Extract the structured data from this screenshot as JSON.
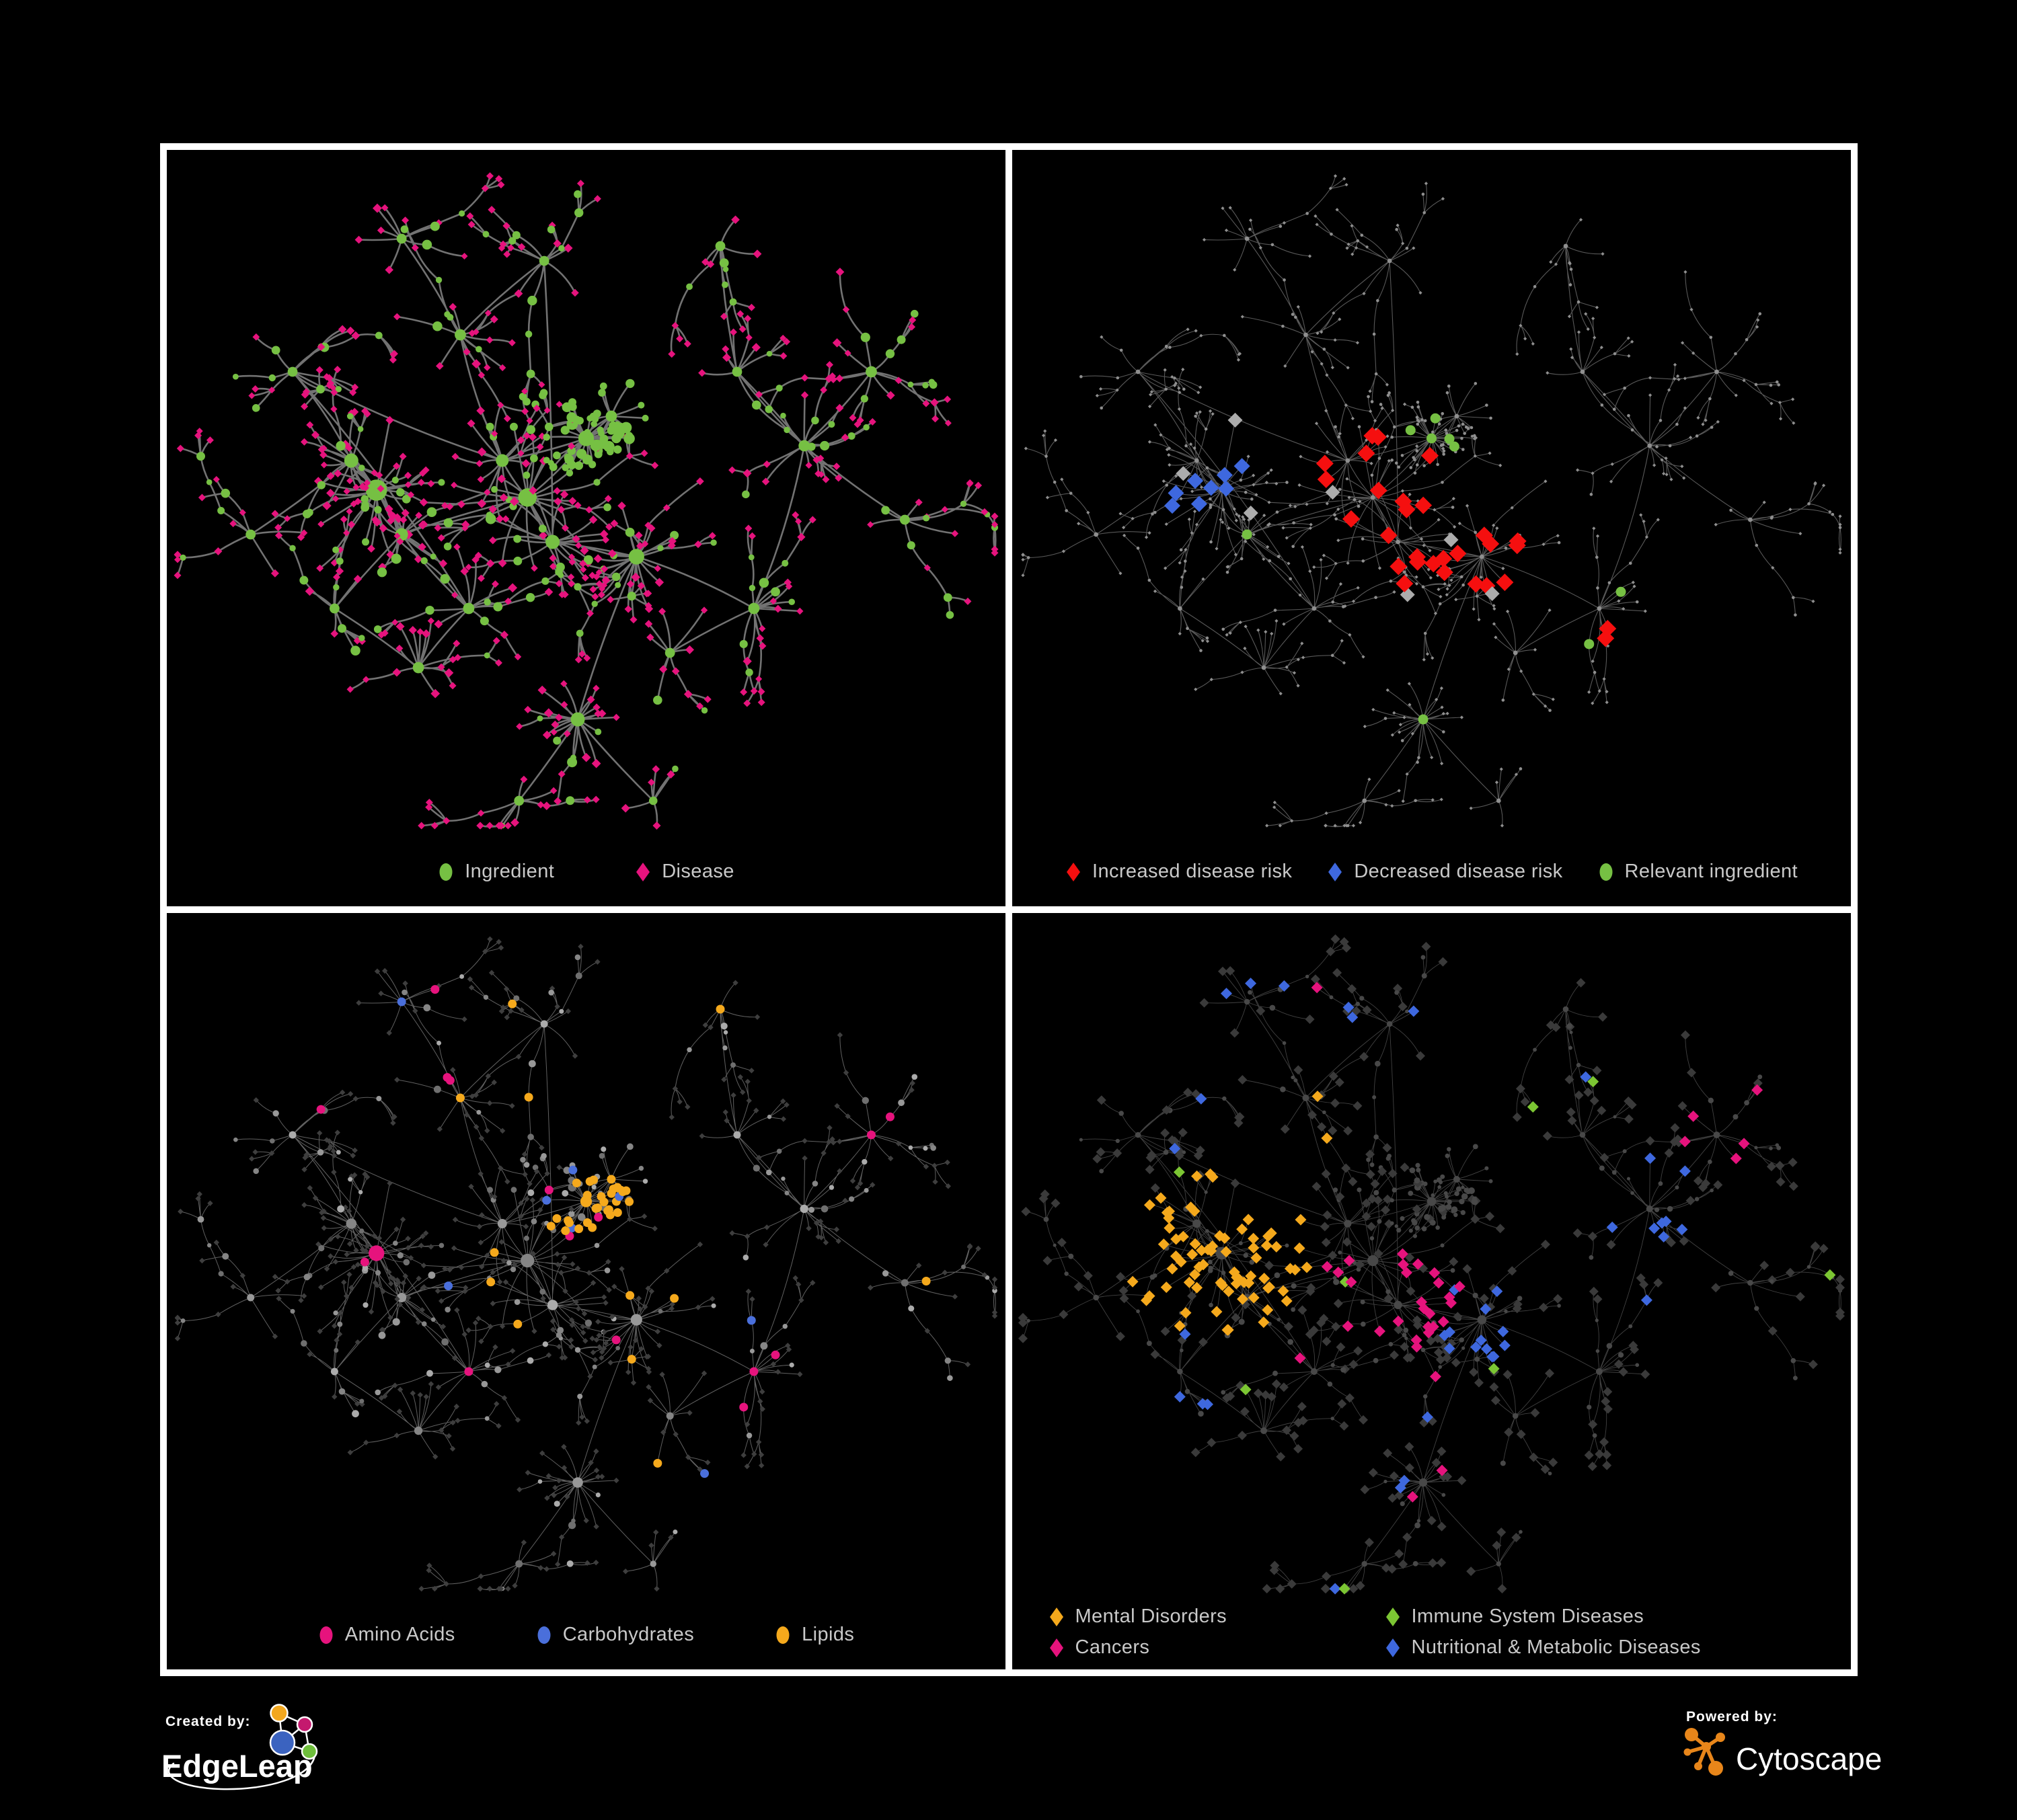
{
  "canvas": {
    "background": "#000000",
    "frame_color": "#FFFFFF"
  },
  "panels": [
    {
      "id": "ingredient-disease-network",
      "legend": [
        {
          "label": "Ingredient",
          "shape": "circle",
          "color": "#76C043"
        },
        {
          "label": "Disease",
          "shape": "diamond",
          "color": "#E6137D"
        }
      ]
    },
    {
      "id": "disease-risk-network",
      "legend": [
        {
          "label": "Increased disease risk",
          "shape": "diamond",
          "color": "#F50F0F"
        },
        {
          "label": "Decreased disease risk",
          "shape": "diamond",
          "color": "#3E68DF"
        },
        {
          "label": "Relevant ingredient",
          "shape": "circle",
          "color": "#76C043"
        }
      ]
    },
    {
      "id": "nutrient-class-network",
      "legend": [
        {
          "label": "Amino Acids",
          "shape": "circle",
          "color": "#E6137D"
        },
        {
          "label": "Carbohydrates",
          "shape": "circle",
          "color": "#4A6FDB"
        },
        {
          "label": "Lipids",
          "shape": "circle",
          "color": "#F5A91C"
        }
      ]
    },
    {
      "id": "disease-class-network",
      "legend": [
        {
          "label": "Mental Disorders",
          "shape": "diamond",
          "color": "#F5A91C"
        },
        {
          "label": "Immune System Diseases",
          "shape": "diamond",
          "color": "#7CC633"
        },
        {
          "label": "Cancers",
          "shape": "diamond",
          "color": "#E6137D"
        },
        {
          "label": "Nutritional & Metabolic Diseases",
          "shape": "diamond",
          "color": "#3E68DF"
        }
      ]
    }
  ],
  "footer": {
    "created_by_label": "Created by:",
    "created_by_name": "EdgeLeap",
    "powered_by_label": "Powered by:",
    "powered_by_name": "Cytoscape",
    "edgeleap_colors": {
      "orange": "#F2A71E",
      "pink": "#C4196E",
      "blue": "#3B63C0",
      "green": "#6EBE3B"
    },
    "cytoscape_orange": "#E8861A"
  },
  "network": {
    "seed": 1337,
    "hub_format": [
      "x_frac",
      "y_frac",
      "radius",
      "leaves",
      "spread",
      "chain_prob",
      "is_blob"
    ],
    "hubs": [
      [
        0.25,
        0.46,
        15,
        24,
        0.095,
        0.45,
        0
      ],
      [
        0.22,
        0.42,
        10,
        15,
        0.08,
        0.5,
        0
      ],
      [
        0.28,
        0.52,
        9,
        14,
        0.07,
        0.5,
        0
      ],
      [
        0.43,
        0.47,
        13,
        22,
        0.09,
        0.45,
        0
      ],
      [
        0.4,
        0.42,
        9,
        13,
        0.07,
        0.4,
        0
      ],
      [
        0.46,
        0.53,
        10,
        15,
        0.07,
        0.4,
        0
      ],
      [
        0.5,
        0.39,
        11,
        32,
        0.045,
        0.1,
        1
      ],
      [
        0.53,
        0.36,
        8,
        12,
        0.04,
        0.2,
        1
      ],
      [
        0.56,
        0.55,
        11,
        24,
        0.06,
        0.2,
        0
      ],
      [
        0.49,
        0.77,
        10,
        22,
        0.055,
        0.15,
        0
      ],
      [
        0.36,
        0.62,
        8,
        11,
        0.06,
        0.5,
        0
      ],
      [
        0.3,
        0.7,
        8,
        11,
        0.07,
        0.55,
        0
      ],
      [
        0.7,
        0.62,
        8,
        13,
        0.07,
        0.5,
        0
      ],
      [
        0.76,
        0.4,
        8,
        11,
        0.07,
        0.55,
        0
      ],
      [
        0.84,
        0.3,
        8,
        11,
        0.07,
        0.55,
        0
      ],
      [
        0.68,
        0.3,
        7,
        8,
        0.06,
        0.5,
        0
      ],
      [
        0.35,
        0.25,
        8,
        11,
        0.08,
        0.6,
        0
      ],
      [
        0.45,
        0.15,
        7,
        9,
        0.07,
        0.6,
        0
      ],
      [
        0.28,
        0.12,
        7,
        8,
        0.06,
        0.55,
        0
      ],
      [
        0.15,
        0.3,
        7,
        8,
        0.07,
        0.55,
        0
      ],
      [
        0.1,
        0.52,
        7,
        6,
        0.06,
        0.5,
        0
      ],
      [
        0.2,
        0.62,
        7,
        8,
        0.06,
        0.5,
        0
      ],
      [
        0.6,
        0.68,
        7,
        8,
        0.06,
        0.45,
        0
      ],
      [
        0.66,
        0.13,
        7,
        8,
        0.06,
        0.55,
        0
      ],
      [
        0.88,
        0.5,
        7,
        8,
        0.06,
        0.5,
        0
      ],
      [
        0.42,
        0.88,
        7,
        8,
        0.05,
        0.4,
        0
      ],
      [
        0.58,
        0.88,
        6,
        6,
        0.05,
        0.4,
        0
      ]
    ],
    "panel_styles": [
      {
        "mode": "plain",
        "edge": {
          "color": "#7C7C7C",
          "width": 2.6,
          "opacity": 0.92
        },
        "circle_color": "#76C043",
        "diamond_color": "#E6137D"
      },
      {
        "mode": "base",
        "edge": {
          "color": "#6E6E6E",
          "width": 1.1,
          "opacity": 0.8
        },
        "base": {
          "circle": "#8F8F8F",
          "diamond": "#8F8F8F",
          "circle_r": 2.3,
          "diamond_s": 2.6,
          "hub_r": 3.4
        },
        "highlights": [
          {
            "name": "increased-risk",
            "color": "#F50F0F",
            "target": "d",
            "size": 13,
            "anchors": [
              [
                0.43,
                0.47,
                0.09,
                0.2
              ],
              [
                0.46,
                0.53,
                0.07,
                0.22
              ],
              [
                0.56,
                0.55,
                0.06,
                0.25
              ],
              [
                0.4,
                0.42,
                0.05,
                0.2
              ],
              [
                0.7,
                0.62,
                0.045,
                0.5
              ],
              [
                0.76,
                0.4,
                0.03,
                0.5
              ],
              [
                0.53,
                0.2,
                0.03,
                0.4
              ],
              [
                0.63,
                0.4,
                0.025,
                0.5
              ]
            ],
            "scatter": 0,
            "cap": 29
          },
          {
            "name": "decreased-risk",
            "color": "#3E68DF",
            "target": "d",
            "size": 12,
            "anchors": [
              [
                0.24,
                0.46,
                0.06,
                0.28
              ],
              [
                0.84,
                0.3,
                0.035,
                0.8
              ]
            ],
            "scatter": 0,
            "cap": 9
          },
          {
            "name": "neutral",
            "color": "#ACACAC",
            "target": "d",
            "size": 11,
            "anchors": [
              [
                0.3,
                0.44,
                0.1,
                0.05
              ],
              [
                0.48,
                0.52,
                0.1,
                0.05
              ],
              [
                0.58,
                0.58,
                0.05,
                0.12
              ]
            ],
            "scatter": 0,
            "cap": 7
          },
          {
            "name": "relevant-ingredient",
            "color": "#76C043",
            "target": "c",
            "size": 7.5,
            "anchors": [
              [
                0.43,
                0.47,
                0.1,
                0.12
              ],
              [
                0.5,
                0.39,
                0.07,
                0.1
              ],
              [
                0.25,
                0.46,
                0.09,
                0.12
              ],
              [
                0.49,
                0.77,
                0.02,
                1.0
              ],
              [
                0.84,
                0.3,
                0.04,
                0.5
              ],
              [
                0.1,
                0.52,
                0.03,
                0.5
              ],
              [
                0.7,
                0.62,
                0.05,
                0.35
              ]
            ],
            "scatter": 0.004,
            "cap": 26
          }
        ]
      },
      {
        "mode": "base",
        "edge": {
          "color": "#939393",
          "width": 1.0,
          "opacity": 0.65
        },
        "base": {
          "circle": "greys",
          "diamond": "#3E3E3E",
          "diamond_s": 4.2,
          "circle_scale": 0.78
        },
        "highlights": [
          {
            "name": "lipids",
            "color": "#F5A91C",
            "target": "c",
            "size": 0,
            "anchors": [
              [
                0.5,
                0.39,
                0.065,
                0.6
              ],
              [
                0.43,
                0.47,
                0.09,
                0.16
              ],
              [
                0.56,
                0.55,
                0.07,
                0.22
              ],
              [
                0.45,
                0.15,
                0.06,
                0.25
              ],
              [
                0.35,
                0.25,
                0.05,
                0.15
              ],
              [
                0.88,
                0.5,
                0.05,
                0.3
              ]
            ],
            "scatter": 0.02,
            "cap": 55
          },
          {
            "name": "carbohydrates",
            "color": "#4A6FDB",
            "target": "c",
            "size": 0,
            "anchors": [
              [
                0.5,
                0.39,
                0.055,
                0.25
              ],
              [
                0.28,
                0.12,
                0.03,
                0.4
              ]
            ],
            "scatter": 0.012,
            "cap": 14
          },
          {
            "name": "amino-acids",
            "color": "#E6137D",
            "target": "c",
            "size": 0,
            "anchors": [
              [
                0.25,
                0.46,
                0.02,
                0.5
              ],
              [
                0.3,
                0.23,
                0.05,
                0.3
              ],
              [
                0.7,
                0.62,
                0.06,
                0.25
              ],
              [
                0.3,
                0.7,
                0.05,
                0.3
              ],
              [
                0.36,
                0.62,
                0.04,
                0.3
              ]
            ],
            "scatter": 0.035,
            "cap": 18
          }
        ]
      },
      {
        "mode": "base",
        "edge": {
          "color": "#9A9A9A",
          "width": 0.9,
          "opacity": 0.42
        },
        "base": {
          "circle": "#484848",
          "diamond": "#3A3A3A",
          "diamond_s": 7,
          "circle_scale": 0.62
        },
        "highlights": [
          {
            "name": "mental-disorders",
            "color": "#F5A91C",
            "target": "d",
            "size": 8.5,
            "anchors": [
              [
                0.25,
                0.46,
                0.115,
                0.85
              ],
              [
                0.35,
                0.25,
                0.03,
                0.3
              ],
              [
                0.3,
                0.7,
                0.04,
                0.3
              ]
            ],
            "scatter": 0.012,
            "cap": 75
          },
          {
            "name": "cancers",
            "color": "#E6137D",
            "target": "d",
            "size": 8.5,
            "anchors": [
              [
                0.45,
                0.51,
                0.085,
                0.6
              ],
              [
                0.84,
                0.3,
                0.05,
                0.6
              ],
              [
                0.49,
                0.77,
                0.04,
                0.2
              ]
            ],
            "scatter": 0.012,
            "cap": 55
          },
          {
            "name": "nutritional-metabolic",
            "color": "#3E68DF",
            "target": "d",
            "size": 8.5,
            "anchors": [
              [
                0.56,
                0.55,
                0.055,
                0.7
              ],
              [
                0.76,
                0.4,
                0.07,
                0.45
              ],
              [
                0.45,
                0.15,
                0.08,
                0.3
              ],
              [
                0.66,
                0.13,
                0.07,
                0.3
              ],
              [
                0.28,
                0.12,
                0.05,
                0.3
              ],
              [
                0.2,
                0.62,
                0.06,
                0.2
              ]
            ],
            "scatter": 0.03,
            "cap": 60
          },
          {
            "name": "immune-system",
            "color": "#7CC633",
            "target": "d",
            "size": 8.5,
            "anchors": [
              [
                0.45,
                0.4,
                0.3,
                0.03
              ]
            ],
            "scatter": 0.008,
            "cap": 10
          }
        ]
      }
    ]
  }
}
